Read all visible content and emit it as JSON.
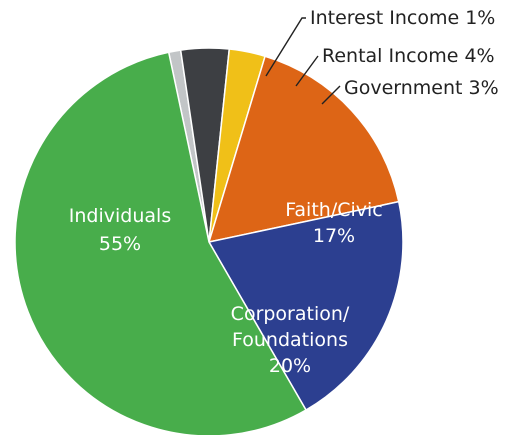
{
  "chart_data": {
    "type": "pie",
    "title": "",
    "slices": [
      {
        "label": "Interest Income",
        "value": 1,
        "display": "Interest Income 1%",
        "color": "#c2c5c7"
      },
      {
        "label": "Rental Income",
        "value": 4,
        "display": "Rental Income 4%",
        "color": "#3d3f43"
      },
      {
        "label": "Government",
        "value": 3,
        "display": "Government 3%",
        "color": "#f0c018"
      },
      {
        "label": "Faith/Civic",
        "value": 17,
        "line1": "Faith/Civic",
        "line2": "17%",
        "color": "#dd6516"
      },
      {
        "label": "Corporation/Foundations",
        "value": 20,
        "line1": "Corporation/",
        "line2": "Foundations",
        "line3": "20%",
        "color": "#2c3f90"
      },
      {
        "label": "Individuals",
        "value": 55,
        "line1": "Individuals",
        "line2": "55%",
        "color": "#48ad4b"
      }
    ]
  }
}
